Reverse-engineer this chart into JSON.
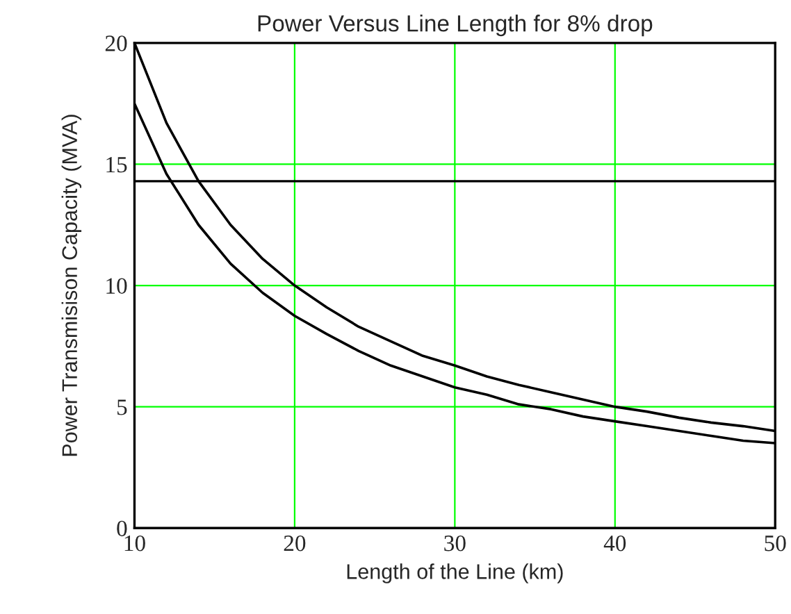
{
  "chart_data": {
    "type": "line",
    "title": "Power Versus Line Length for 8% drop",
    "xlabel": "Length of the Line (km)",
    "ylabel": "Power Transmisison Capacity (MVA)",
    "x": [
      10,
      12,
      14,
      16,
      18,
      20,
      22,
      24,
      26,
      28,
      30,
      32,
      34,
      36,
      38,
      40,
      42,
      44,
      46,
      48,
      50
    ],
    "series": [
      {
        "color": "#000000",
        "values": [
          20,
          16.7,
          14.3,
          12.5,
          11.1,
          10,
          9.1,
          8.3,
          7.7,
          7.1,
          6.7,
          6.25,
          5.9,
          5.6,
          5.3,
          5,
          4.8,
          4.55,
          4.35,
          4.2,
          4
        ]
      },
      {
        "color": "#000000",
        "values": [
          17.5,
          14.6,
          12.5,
          10.9,
          9.7,
          8.75,
          8.0,
          7.3,
          6.7,
          6.25,
          5.8,
          5.5,
          5.1,
          4.9,
          4.6,
          4.4,
          4.2,
          4.0,
          3.8,
          3.6,
          3.5
        ]
      }
    ],
    "ref_lines": [
      {
        "axis": "y",
        "value": 14.3,
        "color": "#000000",
        "line_style": "solid"
      }
    ],
    "xlim": [
      10,
      50
    ],
    "ylim": [
      0,
      20
    ],
    "xticks": [
      10,
      20,
      30,
      40,
      50
    ],
    "yticks": [
      0,
      5,
      10,
      15,
      20
    ],
    "grid": true,
    "legend": false,
    "marker": "none",
    "line_style": "solid"
  }
}
